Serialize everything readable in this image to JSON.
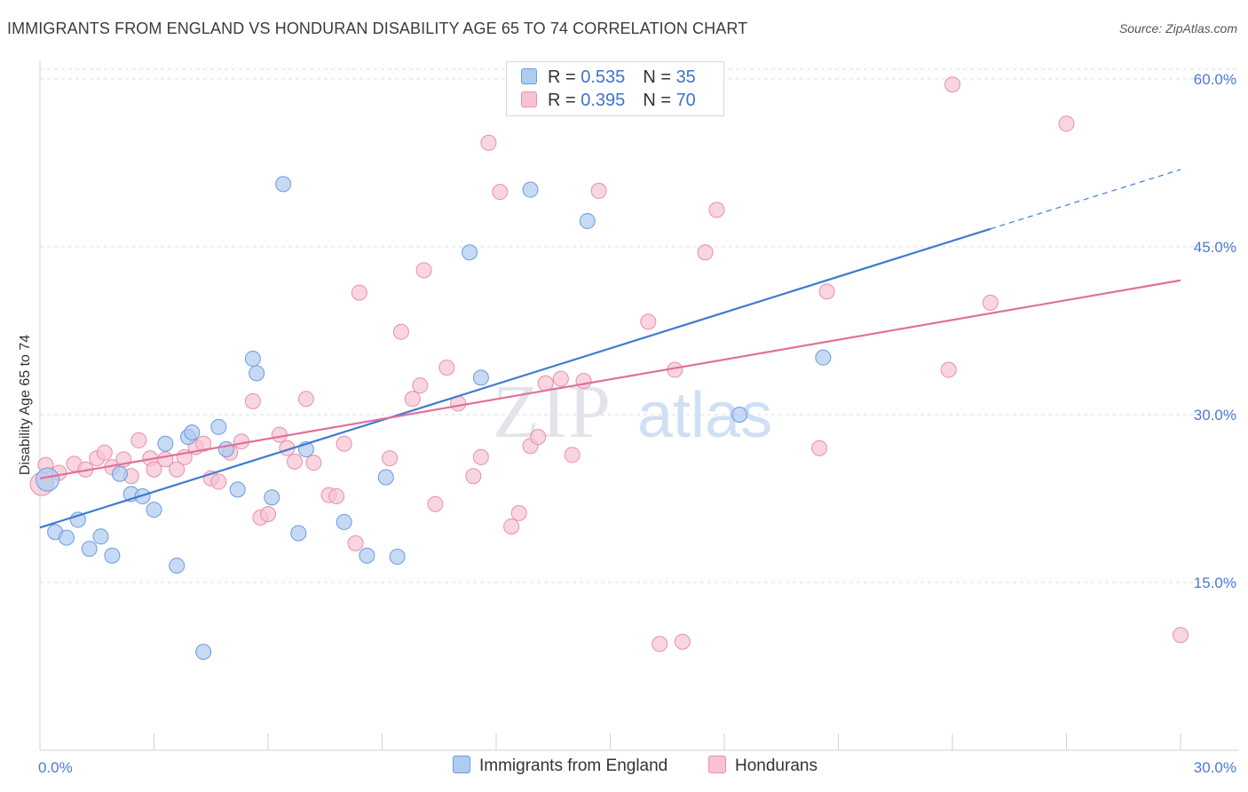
{
  "title": "IMMIGRANTS FROM ENGLAND VS HONDURAN DISABILITY AGE 65 TO 74 CORRELATION CHART",
  "source": "Source: ZipAtlas.com",
  "watermark": {
    "zip": "ZIP",
    "atlas": "atlas"
  },
  "legend_top": {
    "rows": [
      {
        "r_label": "R = ",
        "r_value": "0.535",
        "n_label": "N = ",
        "n_value": "35"
      },
      {
        "r_label": "R = ",
        "r_value": "0.395",
        "n_label": "N = ",
        "n_value": "70"
      }
    ]
  },
  "colors": {
    "blue_fill": "#aecbf0",
    "blue_stroke": "#6a9be0",
    "blue_line": "#3f7bd0",
    "pink_fill": "#f7c3d3",
    "pink_stroke": "#e88fac",
    "pink_line": "#e0709a",
    "grid": "#d9dde6",
    "tick_text": "#4a7bd0"
  },
  "chart_data": {
    "type": "scatter",
    "title": "IMMIGRANTS FROM ENGLAND VS HONDURAN DISABILITY AGE 65 TO 74 CORRELATION CHART",
    "xlabel": "",
    "ylabel": "Disability Age 65 to 74",
    "xlim": [
      0,
      30
    ],
    "ylim": [
      0,
      61.5
    ],
    "x_tick_labels": [
      "0.0%",
      "30.0%"
    ],
    "y_ticks": [
      15,
      30,
      45,
      60
    ],
    "y_tick_labels": [
      "15.0%",
      "30.0%",
      "45.0%",
      "60.0%"
    ],
    "grid": true,
    "series": [
      {
        "name": "Immigrants from England",
        "points": [
          [
            0.2,
            24.2
          ],
          [
            0.4,
            19.5
          ],
          [
            0.7,
            19.0
          ],
          [
            1.0,
            20.6
          ],
          [
            1.3,
            18.0
          ],
          [
            1.6,
            19.1
          ],
          [
            1.9,
            17.4
          ],
          [
            2.1,
            24.7
          ],
          [
            2.4,
            22.9
          ],
          [
            2.7,
            22.7
          ],
          [
            3.0,
            21.5
          ],
          [
            3.3,
            27.4
          ],
          [
            3.6,
            16.5
          ],
          [
            3.9,
            28.0
          ],
          [
            4.0,
            28.4
          ],
          [
            4.3,
            8.8
          ],
          [
            4.7,
            28.9
          ],
          [
            4.9,
            26.9
          ],
          [
            5.2,
            23.3
          ],
          [
            5.6,
            35.0
          ],
          [
            5.7,
            33.7
          ],
          [
            6.1,
            22.6
          ],
          [
            6.4,
            50.6
          ],
          [
            6.8,
            19.4
          ],
          [
            7.0,
            26.9
          ],
          [
            8.0,
            20.4
          ],
          [
            8.6,
            17.4
          ],
          [
            9.1,
            24.4
          ],
          [
            9.4,
            17.3
          ],
          [
            11.3,
            44.5
          ],
          [
            11.6,
            33.3
          ],
          [
            12.9,
            50.1
          ],
          [
            14.4,
            47.3
          ],
          [
            18.4,
            30.0
          ],
          [
            20.6,
            35.1
          ]
        ],
        "trend": {
          "x0": 0,
          "y0": 19.9,
          "x1": 25.0,
          "y1": 46.6,
          "dash_x1": 30.0,
          "dash_y1": 51.9
        }
      },
      {
        "name": "Hondurans",
        "points": [
          [
            0.15,
            25.5
          ],
          [
            0.5,
            24.8
          ],
          [
            0.9,
            25.6
          ],
          [
            1.2,
            25.1
          ],
          [
            1.5,
            26.1
          ],
          [
            1.7,
            26.6
          ],
          [
            1.9,
            25.3
          ],
          [
            2.2,
            26.0
          ],
          [
            2.4,
            24.5
          ],
          [
            2.6,
            27.7
          ],
          [
            2.9,
            26.1
          ],
          [
            3.0,
            25.1
          ],
          [
            3.3,
            26.0
          ],
          [
            3.6,
            25.1
          ],
          [
            3.8,
            26.2
          ],
          [
            4.1,
            27.1
          ],
          [
            4.3,
            27.4
          ],
          [
            4.5,
            24.3
          ],
          [
            4.7,
            24.0
          ],
          [
            5.0,
            26.6
          ],
          [
            5.3,
            27.6
          ],
          [
            5.6,
            31.2
          ],
          [
            5.8,
            20.8
          ],
          [
            6.0,
            21.1
          ],
          [
            6.3,
            28.2
          ],
          [
            6.5,
            27.0
          ],
          [
            6.7,
            25.8
          ],
          [
            7.0,
            31.4
          ],
          [
            7.2,
            25.7
          ],
          [
            7.6,
            22.8
          ],
          [
            7.8,
            22.7
          ],
          [
            8.0,
            27.4
          ],
          [
            8.3,
            18.5
          ],
          [
            8.4,
            40.9
          ],
          [
            9.2,
            26.1
          ],
          [
            9.5,
            37.4
          ],
          [
            9.8,
            31.4
          ],
          [
            10.0,
            32.6
          ],
          [
            10.1,
            42.9
          ],
          [
            10.4,
            22.0
          ],
          [
            10.7,
            34.2
          ],
          [
            11.0,
            31.0
          ],
          [
            11.4,
            24.5
          ],
          [
            11.6,
            26.2
          ],
          [
            11.8,
            54.3
          ],
          [
            12.1,
            49.9
          ],
          [
            12.4,
            20.0
          ],
          [
            12.6,
            21.2
          ],
          [
            12.9,
            27.2
          ],
          [
            13.1,
            28.0
          ],
          [
            13.3,
            32.8
          ],
          [
            13.7,
            33.2
          ],
          [
            14.0,
            26.4
          ],
          [
            14.3,
            33.0
          ],
          [
            14.7,
            50.0
          ],
          [
            15.6,
            58.5
          ],
          [
            16.0,
            38.3
          ],
          [
            16.3,
            9.5
          ],
          [
            16.7,
            34.0
          ],
          [
            16.9,
            9.7
          ],
          [
            17.5,
            44.5
          ],
          [
            17.8,
            48.3
          ],
          [
            20.5,
            27.0
          ],
          [
            20.7,
            41.0
          ],
          [
            23.9,
            34.0
          ],
          [
            24.0,
            59.5
          ],
          [
            25.0,
            40.0
          ],
          [
            27.0,
            56.0
          ],
          [
            30.0,
            10.3
          ],
          [
            0.05,
            23.8
          ]
        ],
        "trend": {
          "x0": 0,
          "y0": 24.3,
          "x1": 30.0,
          "y1": 42.0
        }
      }
    ]
  },
  "bottom_legend": [
    {
      "label": "Immigrants from England"
    },
    {
      "label": "Hondurans"
    }
  ]
}
